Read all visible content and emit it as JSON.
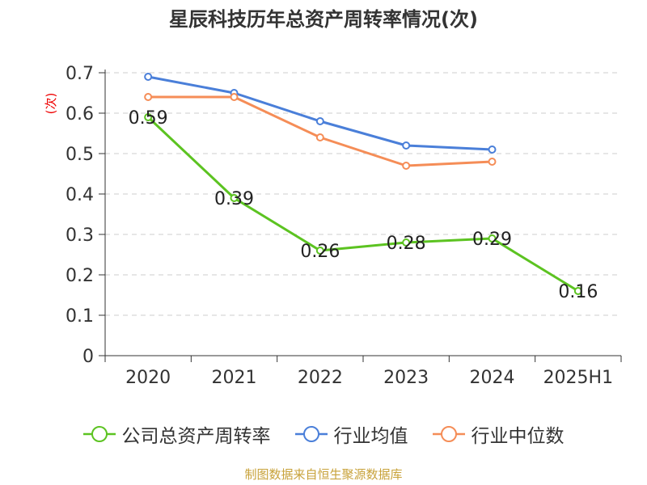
{
  "chart_data": {
    "type": "line",
    "title": "星辰科技历年总资产周转率情况(次)",
    "ylabel": "(次)",
    "xlabel": "",
    "categories": [
      "2020",
      "2021",
      "2022",
      "2023",
      "2024",
      "2025H1"
    ],
    "ylim": [
      0,
      0.7
    ],
    "yticks": [
      "0",
      "0.1",
      "0.2",
      "0.3",
      "0.4",
      "0.5",
      "0.6",
      "0.7"
    ],
    "grid": true,
    "legend_position": "bottom",
    "series": [
      {
        "name": "公司总资产周转率",
        "color": "#5cc321",
        "values": [
          0.59,
          0.39,
          0.26,
          0.28,
          0.29,
          0.16
        ],
        "labels": [
          "0.59",
          "0.39",
          "0.26",
          "0.28",
          "0.29",
          "0.16"
        ]
      },
      {
        "name": "行业均值",
        "color": "#4a7fd9",
        "values": [
          0.69,
          0.65,
          0.58,
          0.52,
          0.51,
          null
        ]
      },
      {
        "name": "行业中位数",
        "color": "#f58d57",
        "values": [
          0.64,
          0.64,
          0.54,
          0.47,
          0.48,
          null
        ]
      }
    ]
  },
  "footer": {
    "source": "制图数据来自恒生聚源数据库"
  }
}
